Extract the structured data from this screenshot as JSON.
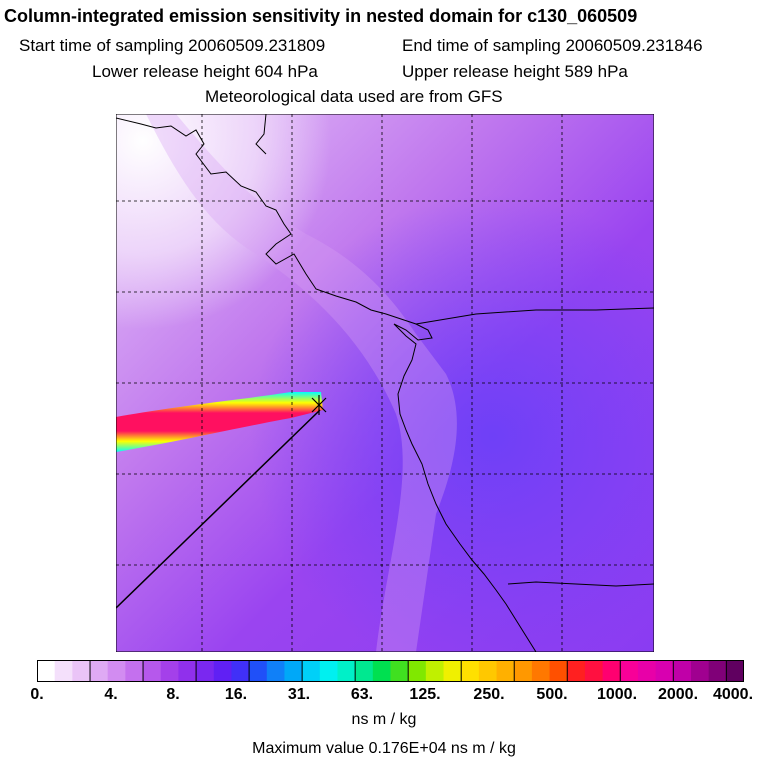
{
  "header": {
    "title": "Column-integrated emission sensitivity in nested domain for c130_060509",
    "start_label": "Start time of sampling 20060509.231809",
    "end_label": "End time of sampling 20060509.231846",
    "lower_release": "Lower release height  604 hPa",
    "upper_release": "Upper release height  589 hPa",
    "met_data": "Meteorological data used are from GFS"
  },
  "legend": {
    "tick_labels": [
      "0.",
      "4.",
      "8.",
      "16.",
      "31.",
      "63.",
      "125.",
      "250.",
      "500.",
      "1000.",
      "2000.",
      "4000."
    ],
    "units": "ns m / kg",
    "max_value": "Maximum value  0.176E+04 ns m / kg"
  },
  "colors": {
    "background_low": "#c87cf0",
    "background_mid": "#9a3cf0",
    "background_blue": "#7a40f6",
    "plume_low": "#00ffff",
    "plume_mid": "#ffff00",
    "plume_high": "#ff1060",
    "coastline": "#000000",
    "colorbar": [
      "#ffffff",
      "#f4e0fb",
      "#eac4f7",
      "#dfaaf4",
      "#d28cf1",
      "#c470ee",
      "#b658ec",
      "#a440ea",
      "#9030ec",
      "#7a28f0",
      "#6020f4",
      "#4030f8",
      "#2050f8",
      "#1080f8",
      "#00a8f8",
      "#00d0f8",
      "#00f0f0",
      "#00f0c8",
      "#00e890",
      "#00e050",
      "#40e020",
      "#80e800",
      "#c0f000",
      "#f0f000",
      "#ffe000",
      "#ffc800",
      "#ffb000",
      "#ff9800",
      "#ff7800",
      "#ff5000",
      "#ff2020",
      "#ff1040",
      "#ff0070",
      "#f80098",
      "#e800a8",
      "#d800b0",
      "#c000a8",
      "#a00090",
      "#800078",
      "#600060"
    ]
  }
}
